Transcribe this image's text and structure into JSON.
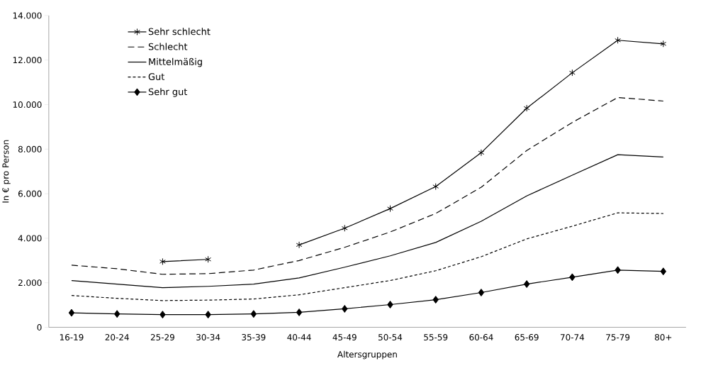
{
  "chart_data": {
    "type": "line",
    "xlabel": "Altersgruppen",
    "ylabel": "In € pro Person",
    "categories": [
      "16-19",
      "20-24",
      "25-29",
      "30-34",
      "35-39",
      "40-44",
      "45-49",
      "50-54",
      "55-59",
      "60-64",
      "65-69",
      "70-74",
      "75-79",
      "80+"
    ],
    "series": [
      {
        "name": "Sehr schlecht",
        "color": "#000000",
        "marker": "cross",
        "line_style": "solid",
        "values": [
          null,
          null,
          2950,
          3050,
          null,
          3700,
          4450,
          5330,
          6320,
          7840,
          9840,
          11430,
          12890,
          12730
        ]
      },
      {
        "name": "Schlecht",
        "color": "#000000",
        "marker": "none",
        "line_style": "dashed",
        "values": [
          2790,
          2630,
          2380,
          2410,
          2570,
          3000,
          3590,
          4280,
          5110,
          6290,
          7940,
          9200,
          10320,
          10160
        ]
      },
      {
        "name": "Mittelmäßig",
        "color": "#000000",
        "marker": "none",
        "line_style": "solid",
        "values": [
          2100,
          1940,
          1780,
          1840,
          1940,
          2220,
          2700,
          3210,
          3810,
          4760,
          5900,
          6830,
          7750,
          7650
        ]
      },
      {
        "name": "Gut",
        "color": "#000000",
        "marker": "none",
        "line_style": "dotted",
        "values": [
          1430,
          1300,
          1200,
          1220,
          1270,
          1460,
          1780,
          2100,
          2540,
          3170,
          3970,
          4540,
          5140,
          5110
        ]
      },
      {
        "name": "Sehr gut",
        "color": "#000000",
        "marker": "diamond",
        "line_style": "solid",
        "values": [
          650,
          600,
          570,
          570,
          600,
          670,
          830,
          1020,
          1240,
          1560,
          1940,
          2250,
          2570,
          2510
        ]
      }
    ],
    "ylim": [
      0,
      14000
    ],
    "yticks": [
      {
        "value": 0,
        "label": "0"
      },
      {
        "value": 2000,
        "label": "2.000"
      },
      {
        "value": 4000,
        "label": "4.000"
      },
      {
        "value": 6000,
        "label": "6.000"
      },
      {
        "value": 8000,
        "label": "8.000"
      },
      {
        "value": 10000,
        "label": "10.000"
      },
      {
        "value": 12000,
        "label": "12.000"
      },
      {
        "value": 14000,
        "label": "14.000"
      }
    ],
    "grid": false,
    "legend": "top left"
  }
}
